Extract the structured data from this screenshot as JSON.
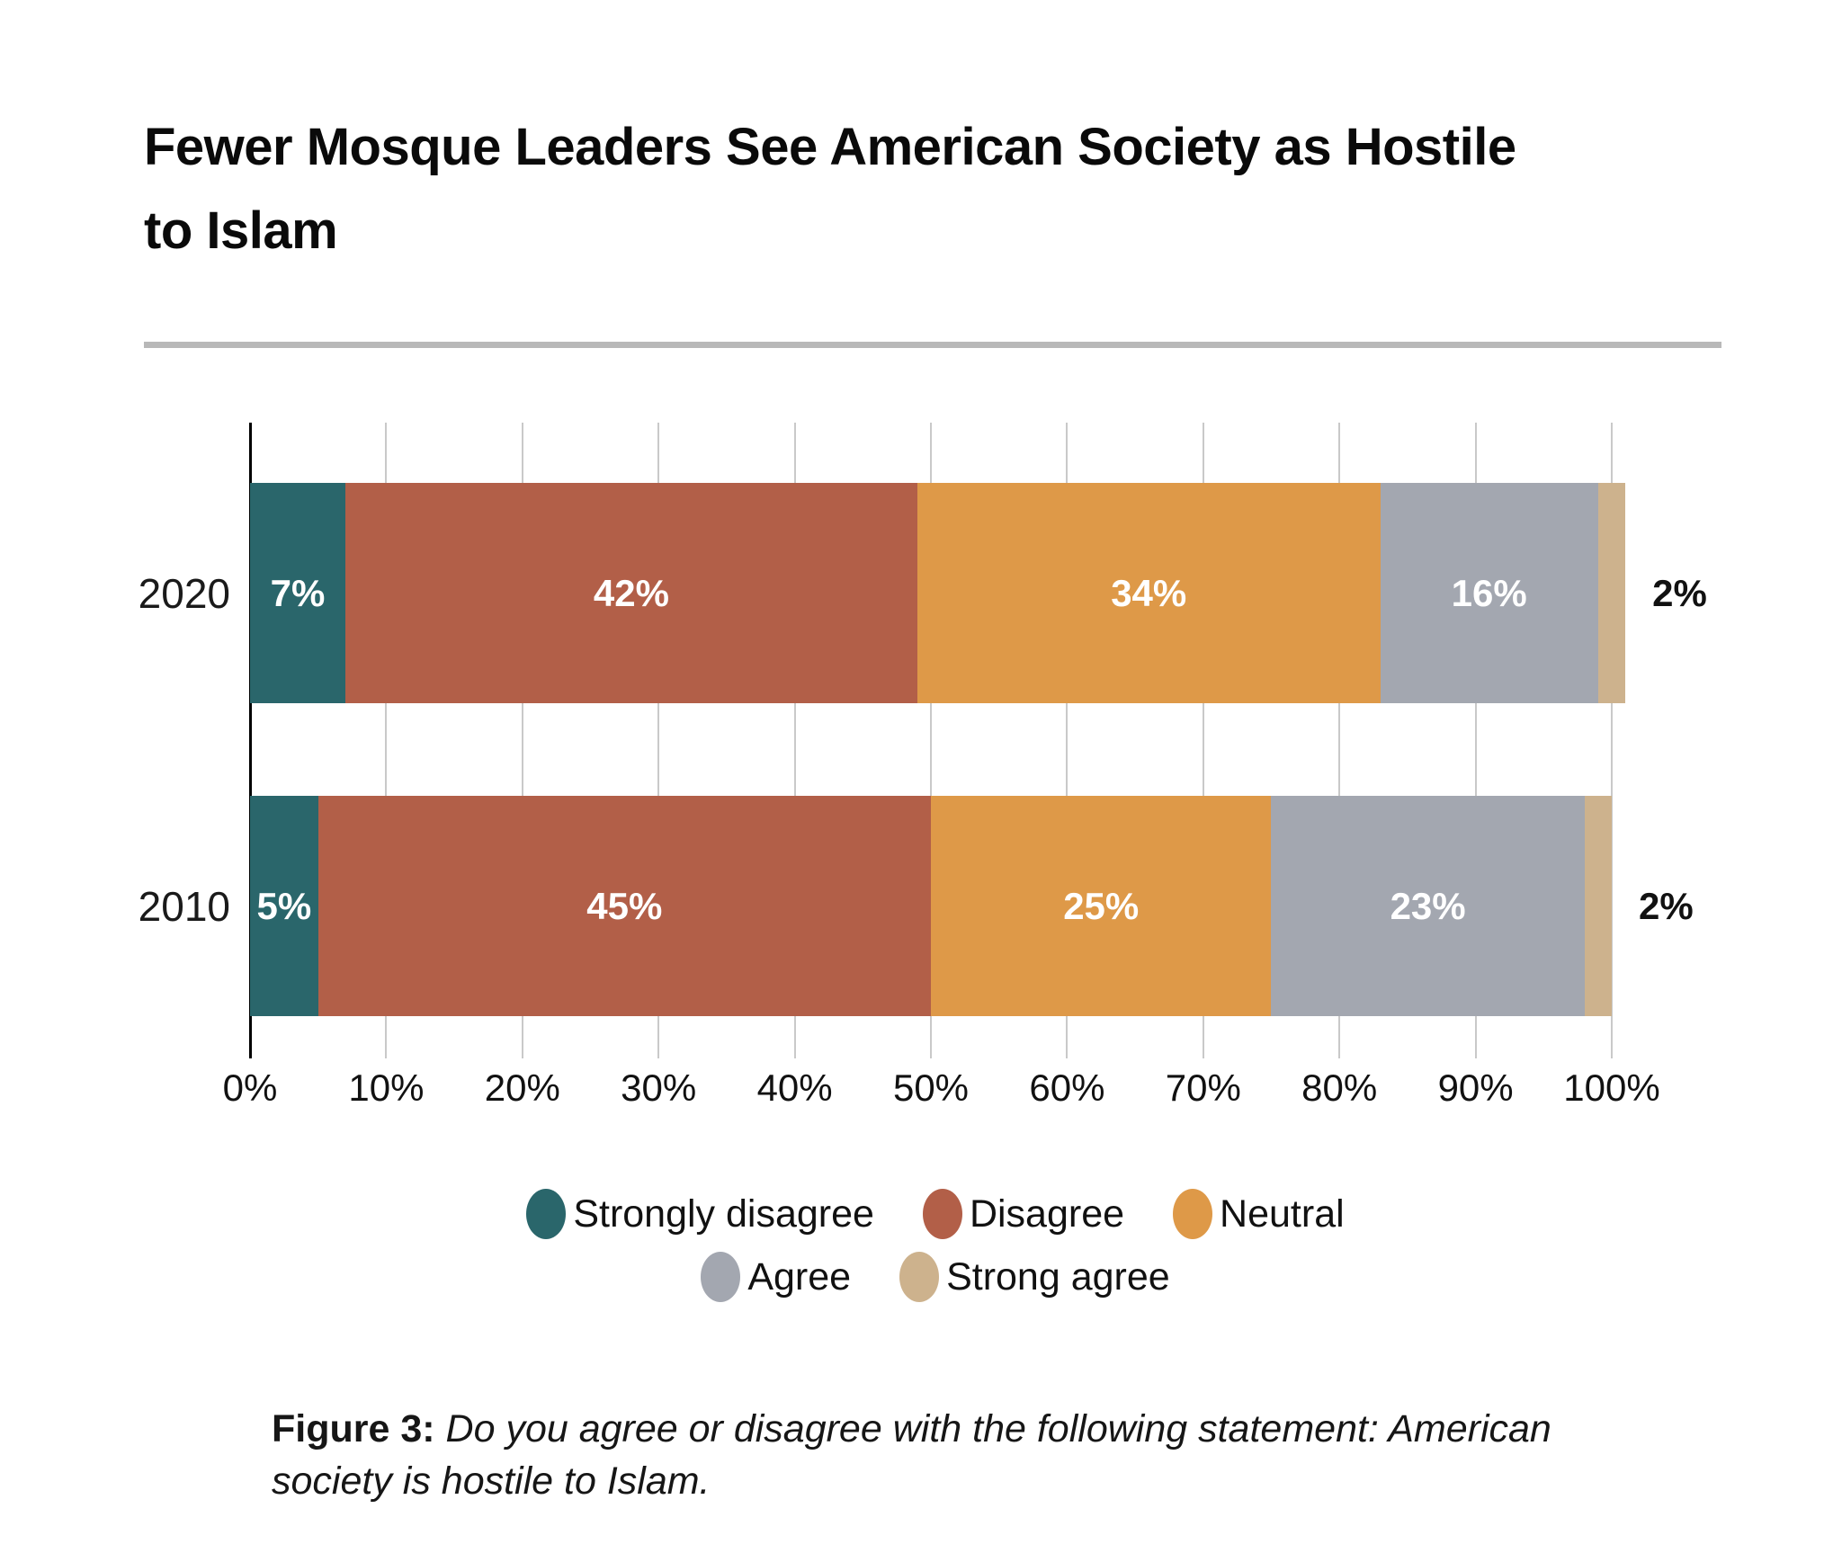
{
  "title": "Fewer Mosque Leaders See American Society as Hostile to Islam",
  "chart_data": {
    "type": "bar",
    "orientation": "horizontal_stacked",
    "categories": [
      "2020",
      "2010"
    ],
    "series": [
      {
        "name": "Strongly disagree",
        "color": "#2a666b",
        "values": [
          7,
          5
        ]
      },
      {
        "name": "Disagree",
        "color": "#b25f48",
        "values": [
          42,
          45
        ]
      },
      {
        "name": "Neutral",
        "color": "#de9948",
        "values": [
          34,
          25
        ]
      },
      {
        "name": "Agree",
        "color": "#a3a7b0",
        "values": [
          16,
          23
        ]
      },
      {
        "name": "Strong agree",
        "color": "#cdb28d",
        "values": [
          2,
          2
        ]
      }
    ],
    "bar_value_labels": [
      [
        "7%",
        "42%",
        "34%",
        "16%",
        "2%"
      ],
      [
        "5%",
        "45%",
        "25%",
        "23%",
        "2%"
      ]
    ],
    "outside_labels": [
      "2%",
      "2%"
    ],
    "x_tick_values": [
      0,
      10,
      20,
      30,
      40,
      50,
      60,
      70,
      80,
      90,
      100
    ],
    "x_tick_labels": [
      "0%",
      "10%",
      "20%",
      "30%",
      "40%",
      "50%",
      "60%",
      "70%",
      "80%",
      "90%",
      "100%"
    ],
    "xlim": [
      0,
      100
    ],
    "grid": "vertical",
    "legend_position": "bottom",
    "legend_rows": [
      [
        "Strongly disagree",
        "Disagree",
        "Neutral"
      ],
      [
        "Agree",
        "Strong agree"
      ]
    ]
  },
  "caption": {
    "prefix": "Figure 3:",
    "text": " Do you agree or disagree with the following statement: American society is hostile to Islam."
  },
  "colors": {
    "axis": "#000000",
    "gridline": "#c9c9c9",
    "divider": "#b8b8b8",
    "inside_label": "#ffffff",
    "outside_label": "#111111"
  }
}
